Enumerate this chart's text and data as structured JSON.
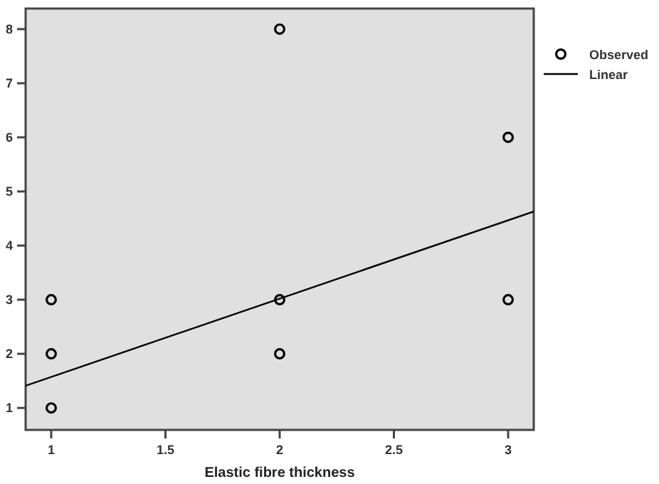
{
  "chart_data": {
    "type": "scatter",
    "xlabel": "Elastic fibre thickness",
    "xlim": [
      0.888,
      3.112
    ],
    "ylim": [
      0.594,
      8.38
    ],
    "xticks": [
      1,
      1.5,
      2,
      2.5,
      3
    ],
    "yticks": [
      1,
      2,
      3,
      4,
      5,
      6,
      7,
      8
    ],
    "legend": "top right",
    "grid": false,
    "series": [
      {
        "name": "Observed",
        "marker": "circle",
        "color": "#000000",
        "x": [
          1,
          1,
          1,
          2,
          2,
          2,
          3,
          3
        ],
        "values": [
          1,
          2,
          3,
          8,
          3,
          2,
          6,
          3
        ]
      },
      {
        "name": "Linear",
        "type": "line",
        "color": "#000000",
        "x": [
          0.888,
          3.112
        ],
        "values": [
          1.41,
          4.63
        ]
      }
    ]
  }
}
